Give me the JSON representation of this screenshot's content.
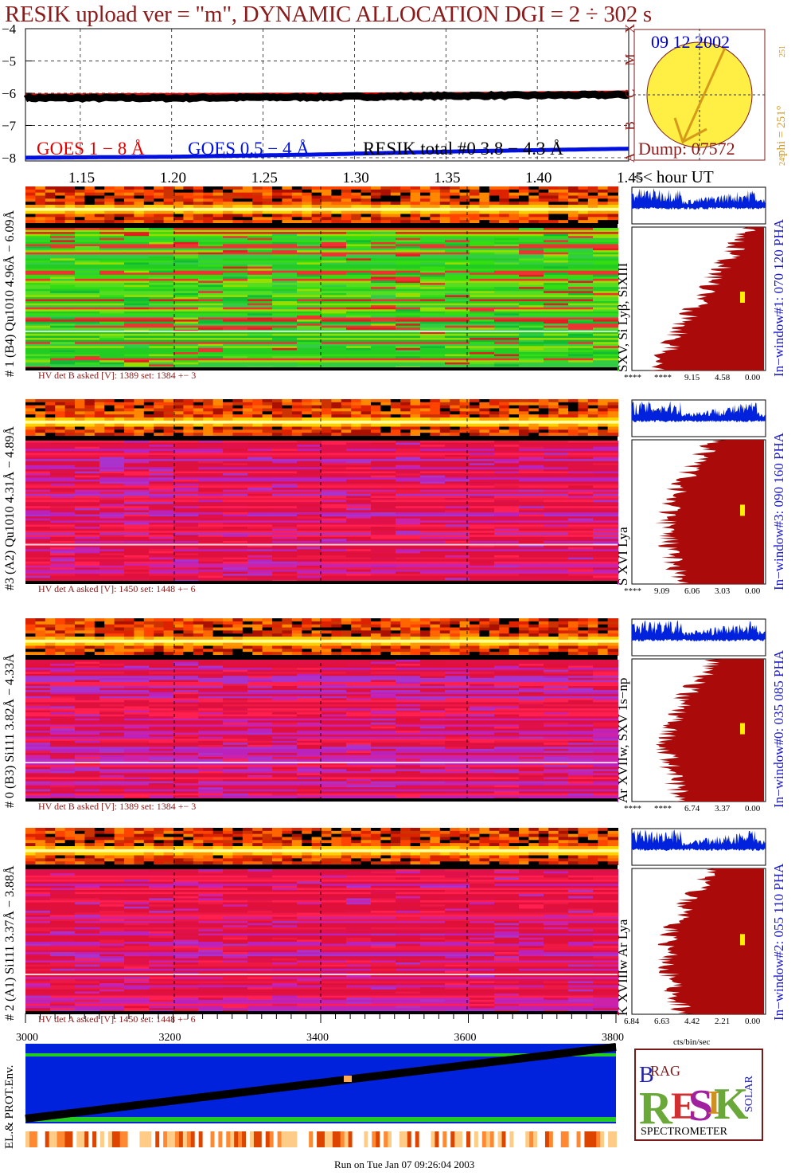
{
  "header": {
    "title": "RESIK upload ver = \"m\", DYNAMIC ALLOCATION  DGI =   2 ÷ 302 s"
  },
  "goes": {
    "y_ticks": [
      "−4",
      "−5",
      "−6",
      "−7",
      "−8"
    ],
    "legend": [
      {
        "label": "GOES 1 − 8 Å",
        "color": "#e00000"
      },
      {
        "label": "GOES 0.5 − 4 Å",
        "color": "#0010e0"
      },
      {
        "label": "RESIK total #0  3.8 − 4.3 Å",
        "color": "#000000"
      }
    ],
    "class_letters": [
      "X",
      "M",
      "C",
      "B",
      "A"
    ],
    "x_ticks": [
      "1.15",
      "1.20",
      "1.25",
      "1.30",
      "1.35",
      "1.40",
      "1.45"
    ],
    "x_axis_label": "<< hour UT"
  },
  "sun": {
    "date": "09 12 2002",
    "phi": "phi = 251°",
    "phi_sub": "251",
    "phi_low": "249",
    "dump": "Dump: 07572",
    "disk_color": "#ffee44"
  },
  "channels": [
    {
      "id": "ch1",
      "label": "# 1 (B4) Qu1010 4.96Å − 6.09Å",
      "hv": "HV det B asked [V]:  1389 set:  1384  +−    3",
      "lines": "SXV, Si Lyβ, SiXIII",
      "window": "In−window#1:  070 120 PHA",
      "ticks": [
        "****",
        "****",
        "9.15",
        "4.58",
        "0.00"
      ],
      "palette": "green"
    },
    {
      "id": "ch3",
      "label": "#3 (A2) Qu1010  4.31Å − 4.89Å",
      "hv": "HV det A asked [V]:  1450 set:  1448  +−    6",
      "lines": "S XVI Lya",
      "window": "In−window#3:  090 160 PHA",
      "ticks": [
        "****",
        "9.09",
        "6.06",
        "3.03",
        "0.00"
      ],
      "palette": "red"
    },
    {
      "id": "ch0",
      "label": "# 0 (B3) Si111  3.82Å − 4.33Å",
      "hv": "HV det B asked [V]:  1389 set:  1384  +−    3",
      "lines": "Ar XVIIw,  SXV 1s−np",
      "window": "In−window#0:  035 085 PHA",
      "ticks": [
        "****",
        "****",
        "6.74",
        "3.37",
        "0.00"
      ],
      "palette": "red"
    },
    {
      "id": "ch2",
      "label": "# 2 (A1) Si111  3.37Å − 3.88Å",
      "hv": "HV det A asked [V]:  1450 set:  1448  +−    6",
      "lines": "K XVIIIw  Ar Lya",
      "window": "In−window#2:  055 110 PHA",
      "ticks": [
        "6.84",
        "6.63",
        "4.42",
        "2.21",
        "0.00"
      ],
      "palette": "red"
    }
  ],
  "pha_axis_label": "cts/bin/sec",
  "env": {
    "label": "EL.& PROT.Env.",
    "x_ticks": [
      "3000",
      "3200",
      "3400",
      "3600",
      "3800"
    ]
  },
  "logo": {
    "letters": [
      "B",
      "R",
      "A",
      "G",
      "R",
      "E",
      "S",
      "I",
      "K",
      "S",
      "O",
      "L",
      "A",
      "R"
    ],
    "footer": "SPECTROMETER"
  },
  "footer": "Run on Tue Jan 07 09:26:04 2003",
  "chart_data": {
    "type": "line",
    "title": "RESIK upload ver = \"m\", DYNAMIC ALLOCATION  DGI =   2 ÷ 302 s",
    "xlabel": "<< hour UT",
    "ylabel": "",
    "xlim": [
      1.12,
      1.45
    ],
    "ylim": [
      -8.1,
      -4
    ],
    "series": [
      {
        "name": "GOES 1 − 8 Å",
        "x": [
          1.12,
          1.2,
          1.28,
          1.36,
          1.45
        ],
        "values": [
          -6.05,
          -6.03,
          -6.02,
          -6.0,
          -5.95
        ]
      },
      {
        "name": "GOES 0.5 − 4 Å",
        "x": [
          1.12,
          1.2,
          1.28,
          1.36,
          1.45
        ],
        "values": [
          -8.0,
          -7.97,
          -7.9,
          -7.8,
          -7.72
        ]
      },
      {
        "name": "RESIK total #0  3.8 − 4.3 Å",
        "x": [
          1.12,
          1.2,
          1.28,
          1.36,
          1.45
        ],
        "values": [
          -6.15,
          -6.15,
          -6.12,
          -6.08,
          -6.05
        ]
      }
    ],
    "grid": true
  }
}
